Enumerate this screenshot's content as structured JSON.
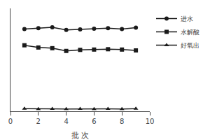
{
  "chart_data": {
    "type": "line",
    "xlabel": "批 次",
    "x": [
      1,
      2,
      3,
      4,
      5,
      6,
      7,
      8,
      9
    ],
    "series": [
      {
        "name": "进水",
        "color": "#1a1a1a",
        "marker": "circle",
        "values": [
          4.8,
          4.85,
          4.9,
          4.75,
          4.78,
          4.82,
          4.85,
          4.8,
          4.88
        ]
      },
      {
        "name": "水解酸",
        "color": "#1a1a1a",
        "marker": "square",
        "values": [
          3.85,
          3.72,
          3.68,
          3.52,
          3.58,
          3.6,
          3.62,
          3.6,
          3.55
        ]
      },
      {
        "name": "好氧出",
        "color": "#1a1a1a",
        "marker": "triangle",
        "values": [
          0.15,
          0.13,
          0.14,
          0.13,
          0.14,
          0.13,
          0.14,
          0.13,
          0.15
        ]
      }
    ],
    "xlim": [
      0,
      10
    ],
    "xticks": [
      0,
      2,
      4,
      6,
      8,
      10
    ],
    "ylim": [
      0,
      6
    ],
    "tick_labels": "x",
    "grid": false,
    "legend": "right"
  }
}
